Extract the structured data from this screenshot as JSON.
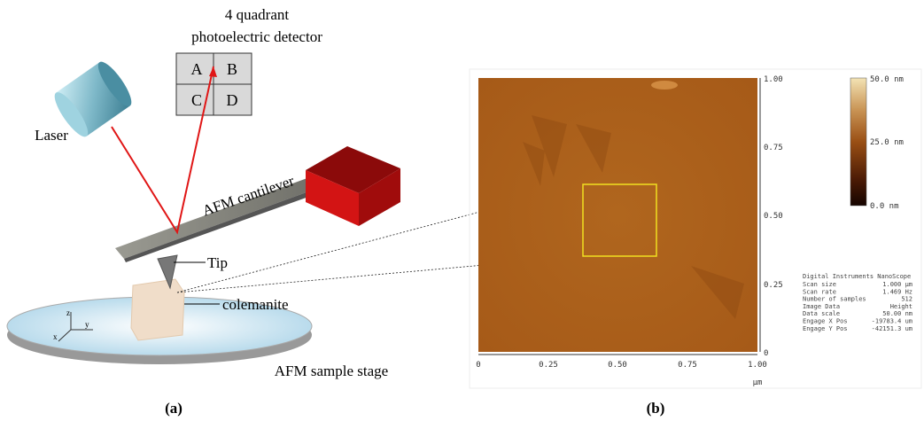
{
  "panel_a": {
    "detector_title": [
      "4 quadrant",
      "photoelectric detector"
    ],
    "quadrants": [
      "A",
      "B",
      "C",
      "D"
    ],
    "labels": {
      "laser": "Laser",
      "cantilever": "AFM cantilever",
      "tip": "Tip",
      "sample": "colemanite",
      "stage": "AFM sample stage"
    },
    "axes": [
      "z",
      "y",
      "x"
    ],
    "caption": "(a)"
  },
  "panel_b": {
    "x_ticks": [
      "0",
      "0.25",
      "0.50",
      "0.75",
      "1.00"
    ],
    "y_ticks": [
      "0",
      "0.25",
      "0.50",
      "0.75",
      "1.00"
    ],
    "x_unit": "µm",
    "colorbar": [
      "50.0 nm",
      "25.0 nm",
      "0.0 nm"
    ],
    "info_header": "Digital Instruments NanoScope",
    "info_rows": [
      [
        "Scan size",
        "1.000 µm"
      ],
      [
        "Scan rate",
        "1.469 Hz"
      ],
      [
        "Number of samples",
        "512"
      ],
      [
        "Image Data",
        "Height"
      ],
      [
        "Data scale",
        "50.00 nm"
      ],
      [
        "Engage X Pos",
        "-19783.4 um"
      ],
      [
        "Engage Y Pos",
        "-42151.3 um"
      ]
    ],
    "caption": "(b)"
  }
}
